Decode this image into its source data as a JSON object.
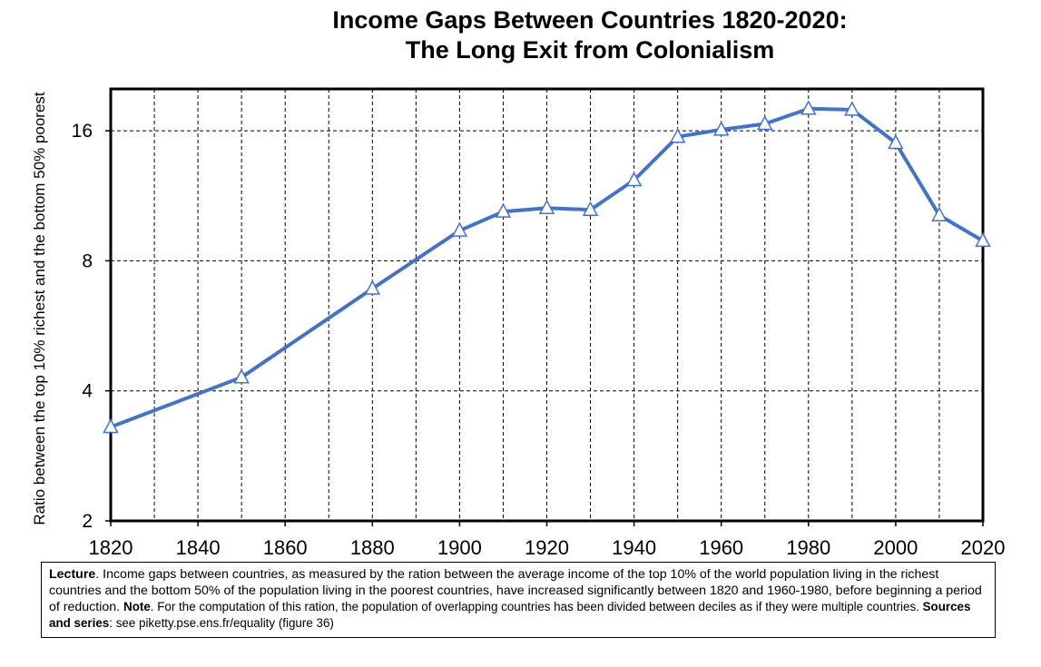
{
  "chart_data": {
    "type": "line",
    "title_line1": "Income Gaps Between Countries 1820-2020:",
    "title_line2": "The Long Exit from Colonialism",
    "xlabel": "",
    "ylabel": "Ratio between the top 10% richest and the bottom 50% poorest",
    "xlim": [
      1820,
      2020
    ],
    "ylim": [
      2,
      20
    ],
    "y_scale": "log2",
    "x_ticks": [
      "1820",
      "1840",
      "1860",
      "1880",
      "1900",
      "1920",
      "1940",
      "1960",
      "1980",
      "2000",
      "2020"
    ],
    "y_ticks": [
      "2",
      "4",
      "8",
      "16"
    ],
    "grid": true,
    "line_color": "#4472C4",
    "marker": "triangle",
    "series": [
      {
        "x": [
          1820,
          1850,
          1880,
          1900,
          1910,
          1920,
          1930,
          1940,
          1950,
          1960,
          1970,
          1980,
          1990,
          2000,
          2010,
          2020
        ],
        "y": [
          3.3,
          4.3,
          6.9,
          9.4,
          10.4,
          10.6,
          10.5,
          12.3,
          15.5,
          16.1,
          16.6,
          18.0,
          17.9,
          15.0,
          10.2,
          8.9
        ]
      }
    ]
  },
  "note": {
    "lecture_label": "Lecture",
    "lecture_text": ". Income gaps between countries, as measured by the ration between the average income of the top 10% of the world population living in the richest countries and the bottom 50% of the population living in the poorest countries, have increased significantly between 1820 and 1960-1980, before beginning a period of reduction. ",
    "note_label": "Note",
    "note_text": ". For the computation of this ration, the population of overlapping countries has been divided between deciles as if they were multiple countries. ",
    "sources_label": "Sources and series",
    "sources_text": ": see piketty.pse.ens.fr/equality (figure 36)"
  }
}
